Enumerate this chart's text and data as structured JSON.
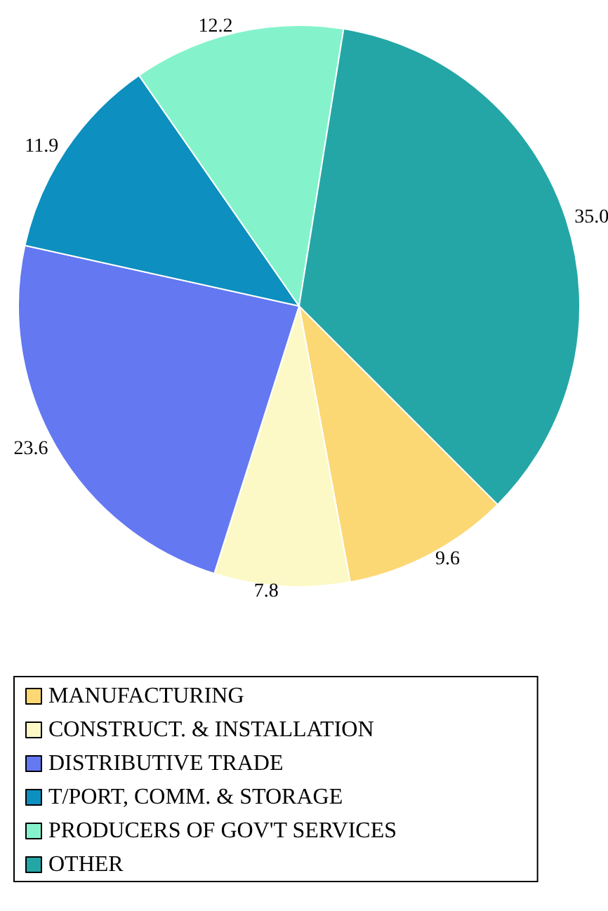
{
  "chart_data": {
    "type": "pie",
    "categories": [
      "MANUFACTURING",
      "CONSTRUCT. & INSTALLATION",
      "DISTRIBUTIVE TRADE",
      "T/PORT, COMM. & STORAGE",
      "PRODUCERS OF GOV'T SERVICES",
      "OTHER"
    ],
    "values": [
      9.6,
      7.8,
      23.6,
      11.9,
      12.2,
      35.0
    ],
    "colors": [
      "#fcd874",
      "#fcf9c6",
      "#6478f2",
      "#0d8fbf",
      "#84f3cc",
      "#24a6a6"
    ],
    "value_labels": [
      "9.6",
      "7.8",
      "23.6",
      "11.9",
      "12.2",
      "35.0"
    ],
    "legend": "bottom"
  }
}
